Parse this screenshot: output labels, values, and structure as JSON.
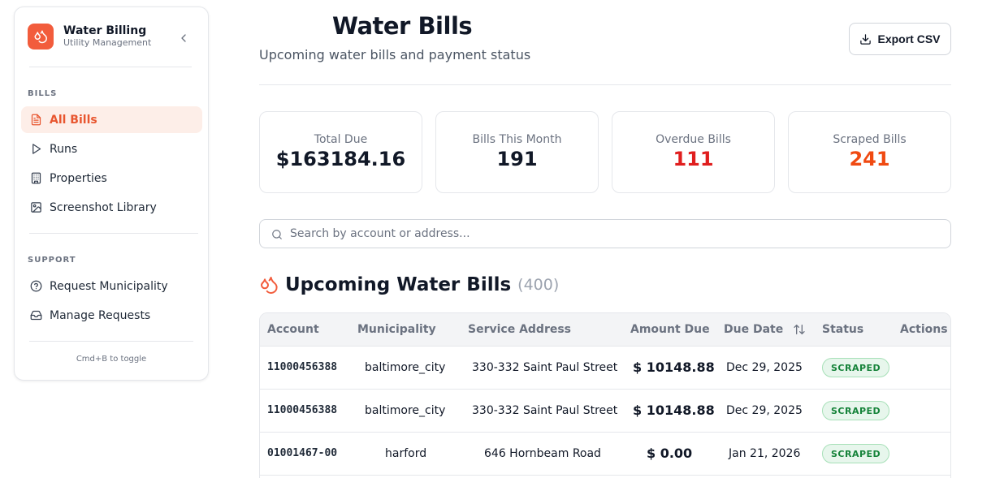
{
  "sidebar": {
    "brand_title": "Water Billing",
    "brand_subtitle": "Utility Management",
    "sections": [
      {
        "label": "BILLS",
        "items": [
          {
            "label": "All Bills",
            "icon": "file-text-icon",
            "active": true
          },
          {
            "label": "Runs",
            "icon": "play-icon"
          },
          {
            "label": "Properties",
            "icon": "building-icon"
          },
          {
            "label": "Screenshot Library",
            "icon": "image-icon"
          }
        ]
      },
      {
        "label": "SUPPORT",
        "items": [
          {
            "label": "Request Municipality",
            "icon": "help-circle-icon"
          },
          {
            "label": "Manage Requests",
            "icon": "inbox-icon"
          }
        ]
      }
    ],
    "toggle_hint": "Cmd+B to toggle"
  },
  "header": {
    "title": "Water Bills",
    "subtitle": "Upcoming water bills and payment status",
    "export_label": "Export CSV"
  },
  "stats": [
    {
      "label": "Total Due",
      "value": "$163184.16",
      "color": "#111827"
    },
    {
      "label": "Bills This Month",
      "value": "191",
      "color": "#111827"
    },
    {
      "label": "Overdue Bills",
      "value": "111",
      "color": "#e01e1e"
    },
    {
      "label": "Scraped Bills",
      "value": "241",
      "color": "#f04a12"
    }
  ],
  "search": {
    "placeholder": "Search by account or address..."
  },
  "bills_section": {
    "title": "Upcoming Water Bills",
    "count": "(400)"
  },
  "table": {
    "columns": [
      "Account",
      "Municipality",
      "Service Address",
      "Amount Due",
      "Due Date",
      "Status",
      "Actions"
    ],
    "rows": [
      {
        "account": "11000456388",
        "municipality": "baltimore_city",
        "address": "330-332 Saint Paul Street",
        "amount": "$ 10148.88",
        "due": "Dec 29, 2025",
        "status": "SCRAPED"
      },
      {
        "account": "11000456388",
        "municipality": "baltimore_city",
        "address": "330-332 Saint Paul Street",
        "amount": "$ 10148.88",
        "due": "Dec 29, 2025",
        "status": "SCRAPED"
      },
      {
        "account": "01001467-00",
        "municipality": "harford",
        "address": "646 Hornbeam Road",
        "amount": "$ 0.00",
        "due": "Jan 21, 2026",
        "status": "SCRAPED"
      }
    ]
  },
  "colors": {
    "accent": "#f25c3c",
    "active_bg": "#fdeee8",
    "badge_green": "#16833a"
  }
}
